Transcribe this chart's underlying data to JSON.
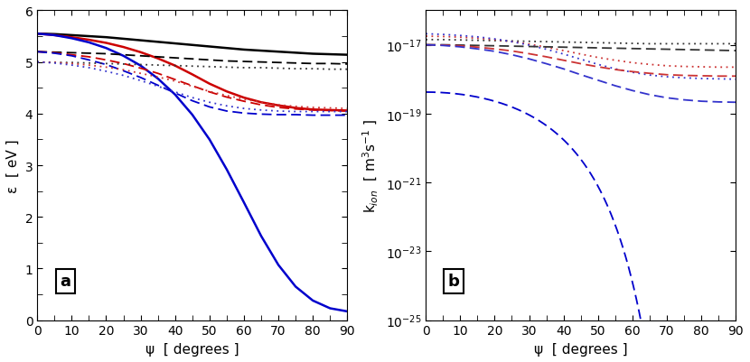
{
  "psi_deg_coarse": [
    0,
    5,
    10,
    15,
    20,
    25,
    30,
    35,
    40,
    45,
    50,
    55,
    60,
    65,
    70,
    75,
    80,
    85,
    90
  ],
  "panel_a": {
    "ylabel": "ε  [ eV ]",
    "xlabel": "ψ  [ degrees ]",
    "ylim": [
      0.0,
      6.0
    ],
    "xlim": [
      0,
      90
    ],
    "label": "a",
    "lines": [
      {
        "color": "#000000",
        "style": "solid",
        "lw": 1.8,
        "y": [
          5.55,
          5.54,
          5.52,
          5.5,
          5.48,
          5.45,
          5.42,
          5.39,
          5.36,
          5.33,
          5.3,
          5.27,
          5.24,
          5.22,
          5.2,
          5.18,
          5.16,
          5.15,
          5.14
        ]
      },
      {
        "color": "#cc0000",
        "style": "solid",
        "lw": 1.8,
        "y": [
          5.55,
          5.52,
          5.48,
          5.43,
          5.37,
          5.29,
          5.19,
          5.07,
          4.93,
          4.76,
          4.58,
          4.43,
          4.31,
          4.22,
          4.16,
          4.11,
          4.08,
          4.07,
          4.06
        ]
      },
      {
        "color": "#0000cc",
        "style": "solid",
        "lw": 1.8,
        "y": [
          5.55,
          5.52,
          5.46,
          5.38,
          5.27,
          5.12,
          4.93,
          4.68,
          4.37,
          3.98,
          3.5,
          2.92,
          2.28,
          1.63,
          1.07,
          0.65,
          0.38,
          0.23,
          0.17
        ]
      },
      {
        "color": "#000000",
        "style": "dashed",
        "lw": 1.3,
        "y": [
          5.2,
          5.19,
          5.18,
          5.17,
          5.16,
          5.14,
          5.12,
          5.1,
          5.08,
          5.06,
          5.04,
          5.02,
          5.01,
          5.0,
          4.99,
          4.98,
          4.97,
          4.97,
          4.96
        ]
      },
      {
        "color": "#cc0000",
        "style": "dashed",
        "lw": 1.3,
        "y": [
          5.2,
          5.18,
          5.14,
          5.1,
          5.04,
          4.97,
          4.88,
          4.78,
          4.66,
          4.54,
          4.42,
          4.32,
          4.24,
          4.17,
          4.12,
          4.09,
          4.07,
          4.06,
          4.05
        ]
      },
      {
        "color": "#0000cc",
        "style": "dashed",
        "lw": 1.3,
        "y": [
          5.2,
          5.17,
          5.12,
          5.04,
          4.95,
          4.83,
          4.7,
          4.55,
          4.4,
          4.25,
          4.13,
          4.05,
          4.01,
          3.99,
          3.98,
          3.98,
          3.97,
          3.97,
          3.97
        ]
      },
      {
        "color": "#333333",
        "style": "dotted",
        "lw": 1.3,
        "y": [
          5.0,
          4.99,
          4.99,
          4.98,
          4.97,
          4.96,
          4.95,
          4.94,
          4.93,
          4.92,
          4.91,
          4.9,
          4.89,
          4.89,
          4.88,
          4.87,
          4.87,
          4.86,
          4.86
        ]
      },
      {
        "color": "#cc3333",
        "style": "dotted",
        "lw": 1.3,
        "y": [
          5.0,
          4.99,
          4.97,
          4.94,
          4.9,
          4.85,
          4.78,
          4.71,
          4.63,
          4.53,
          4.43,
          4.35,
          4.28,
          4.22,
          4.17,
          4.14,
          4.12,
          4.11,
          4.1
        ]
      },
      {
        "color": "#3333cc",
        "style": "dotted",
        "lw": 1.3,
        "y": [
          5.0,
          4.98,
          4.94,
          4.89,
          4.82,
          4.74,
          4.64,
          4.53,
          4.42,
          4.31,
          4.22,
          4.15,
          4.1,
          4.07,
          4.05,
          4.04,
          4.04,
          4.04,
          4.04
        ]
      }
    ]
  },
  "panel_b": {
    "ylabel": "k$_{ion}$  [ m$^{3}$s$^{-1}$ ]",
    "xlabel": "ψ  [ degrees ]",
    "ylim": [
      1e-25,
      1e-16
    ],
    "xlim": [
      0,
      90
    ],
    "label": "b",
    "regular_lines": [
      {
        "color": "#333333",
        "style": "dotted",
        "lw": 1.3,
        "log_y": [
          -16.85,
          -16.85,
          -16.86,
          -16.87,
          -16.88,
          -16.89,
          -16.9,
          -16.91,
          -16.92,
          -16.93,
          -16.94,
          -16.95,
          -16.96,
          -16.97,
          -16.97,
          -16.97,
          -16.97,
          -16.97,
          -16.97
        ]
      },
      {
        "color": "#cc3333",
        "style": "dotted",
        "lw": 1.3,
        "log_y": [
          -16.75,
          -16.76,
          -16.78,
          -16.81,
          -16.85,
          -16.91,
          -16.98,
          -17.07,
          -17.17,
          -17.27,
          -17.37,
          -17.45,
          -17.52,
          -17.57,
          -17.61,
          -17.63,
          -17.64,
          -17.65,
          -17.65
        ]
      },
      {
        "color": "#3333cc",
        "style": "dotted",
        "lw": 1.3,
        "log_y": [
          -16.68,
          -16.7,
          -16.73,
          -16.77,
          -16.83,
          -16.91,
          -17.01,
          -17.13,
          -17.27,
          -17.42,
          -17.57,
          -17.7,
          -17.8,
          -17.88,
          -17.93,
          -17.96,
          -17.98,
          -17.99,
          -18.0
        ]
      },
      {
        "color": "#333333",
        "style": "dashed",
        "lw": 1.3,
        "log_y": [
          -17.0,
          -17.0,
          -17.01,
          -17.02,
          -17.03,
          -17.04,
          -17.05,
          -17.06,
          -17.07,
          -17.08,
          -17.09,
          -17.1,
          -17.11,
          -17.12,
          -17.13,
          -17.14,
          -17.15,
          -17.16,
          -17.17
        ]
      },
      {
        "color": "#cc3333",
        "style": "dashed",
        "lw": 1.3,
        "log_y": [
          -17.0,
          -17.01,
          -17.03,
          -17.07,
          -17.12,
          -17.18,
          -17.26,
          -17.35,
          -17.45,
          -17.55,
          -17.64,
          -17.72,
          -17.78,
          -17.83,
          -17.87,
          -17.89,
          -17.9,
          -17.91,
          -17.91
        ]
      },
      {
        "color": "#3333cc",
        "style": "dashed",
        "lw": 1.3,
        "log_y": [
          -17.0,
          -17.02,
          -17.06,
          -17.12,
          -17.19,
          -17.29,
          -17.41,
          -17.55,
          -17.7,
          -17.87,
          -18.03,
          -18.19,
          -18.33,
          -18.45,
          -18.54,
          -18.6,
          -18.64,
          -18.66,
          -18.67
        ]
      }
    ],
    "steep_blue_dotted": {
      "color": "#3333cc",
      "style": "dotted",
      "lw": 1.3,
      "psi_start": 0,
      "psi_end": 90,
      "eps_start": 5.55,
      "eps_end": 0.17,
      "A": 7e-17,
      "B": 24.0
    },
    "steep_blue_dashed": {
      "color": "#0000cc",
      "style": "dashed",
      "lw": 1.3,
      "psi_start": 0,
      "psi_end": 77,
      "eps_at_0": 5.55,
      "eps_at_90": 0.17,
      "A": 5e-17,
      "B": 26.5
    }
  }
}
